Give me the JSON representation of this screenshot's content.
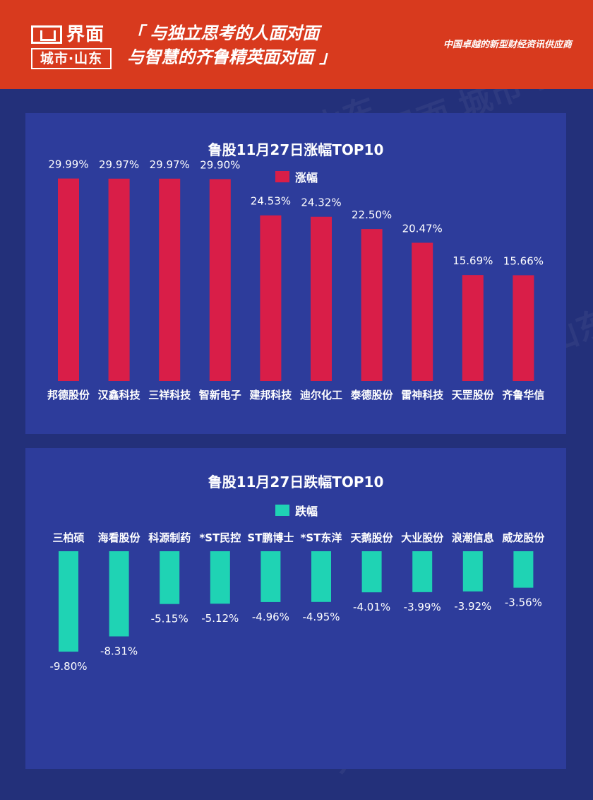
{
  "header": {
    "logo_name": "界面",
    "logo_sub": "城市·山东",
    "slogan_line1": "「 与独立思考的人面对面",
    "slogan_line2": "与智慧的齐鲁精英面对面 」",
    "tagline": "中国卓越的新型财经资讯供应商"
  },
  "chart_data": [
    {
      "type": "bar",
      "title": "鲁股11月27日涨幅TOP10",
      "categories": [
        "邦德股份",
        "汉鑫科技",
        "三祥科技",
        "智新电子",
        "建邦科技",
        "迪尔化工",
        "泰德股份",
        "雷神科技",
        "天罡股份",
        "齐鲁华信"
      ],
      "series": [
        {
          "name": "涨幅",
          "values": [
            29.99,
            29.97,
            29.97,
            29.9,
            24.53,
            24.32,
            22.5,
            20.47,
            15.69,
            15.66
          ],
          "color": "#d91e48"
        }
      ],
      "value_labels": [
        "29.99%",
        "29.97%",
        "29.97%",
        "29.90%",
        "24.53%",
        "24.32%",
        "22.50%",
        "20.47%",
        "15.69%",
        "15.66%"
      ],
      "unit": "%",
      "legend": "top-center",
      "grid": false
    },
    {
      "type": "bar",
      "title": "鲁股11月27日跌幅TOP10",
      "categories": [
        "三柏硕",
        "海看股份",
        "科源制药",
        "*ST民控",
        "ST鹏博士",
        "*ST东洋",
        "天鹅股份",
        "大业股份",
        "浪潮信息",
        "威龙股份"
      ],
      "series": [
        {
          "name": "跌幅",
          "values": [
            -9.8,
            -8.31,
            -5.15,
            -5.12,
            -4.96,
            -4.95,
            -4.01,
            -3.99,
            -3.92,
            -3.56
          ],
          "color": "#1fd3b4"
        }
      ],
      "value_labels": [
        "-9.80%",
        "-8.31%",
        "-5.15%",
        "-5.12%",
        "-4.96%",
        "-4.95%",
        "-4.01%",
        "-3.99%",
        "-3.92%",
        "-3.56%"
      ],
      "unit": "%",
      "legend": "top-center",
      "grid": false
    }
  ],
  "colors": {
    "header_bg": "#d83a1e",
    "page_bg": "#23307a",
    "panel_bg": "#2d3c9b"
  }
}
